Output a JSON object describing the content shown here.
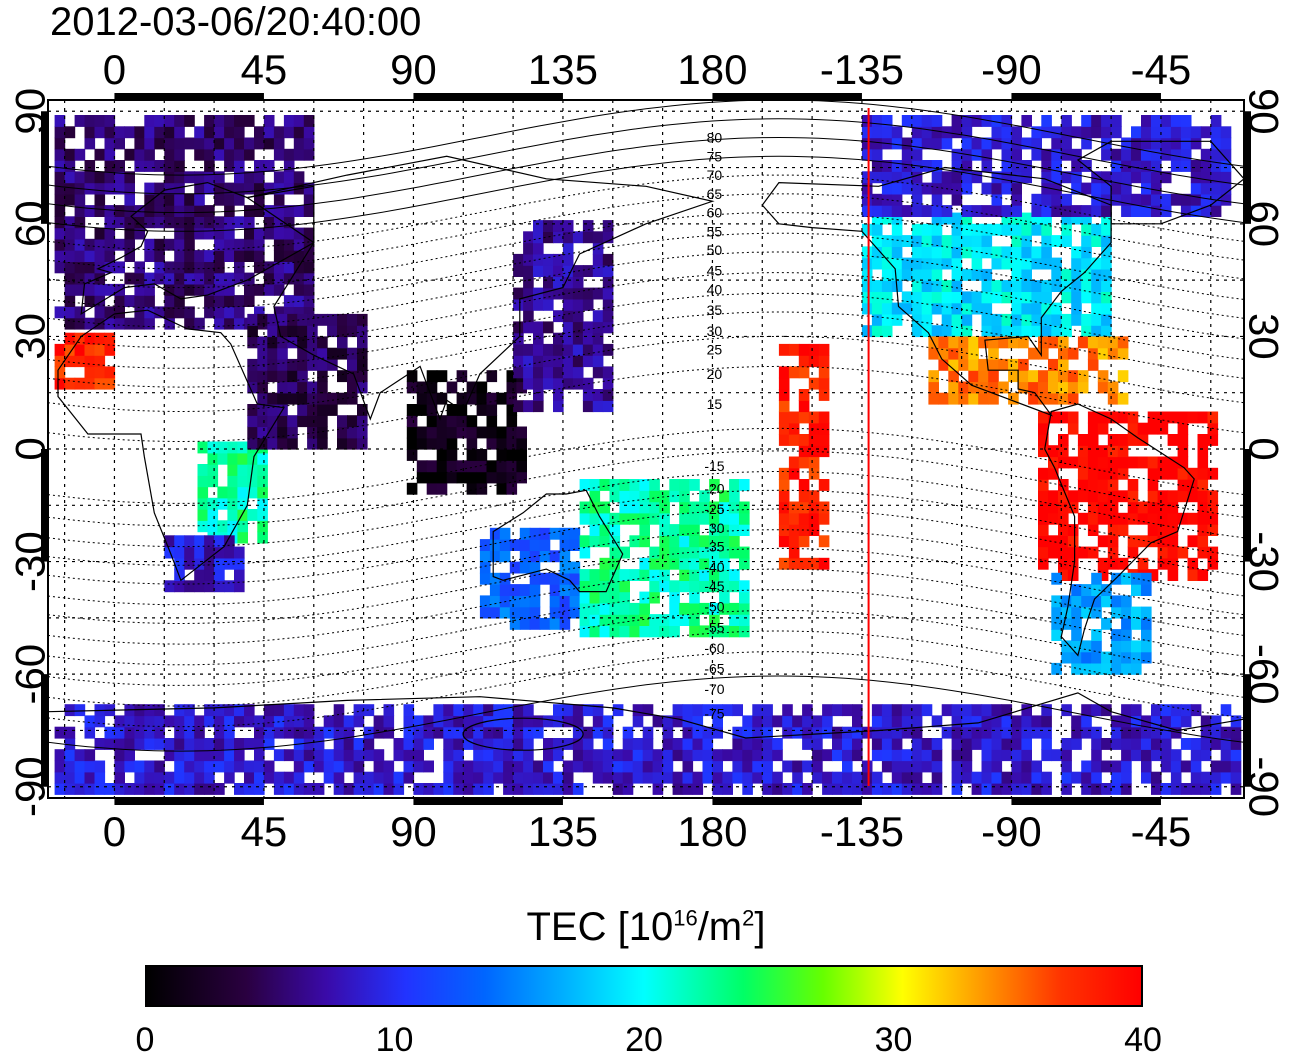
{
  "timestamp": "2012-03-06/20:40:00",
  "map": {
    "lon_ticks": [
      {
        "label": "0",
        "lon": 0
      },
      {
        "label": "45",
        "lon": 45
      },
      {
        "label": "90",
        "lon": 90
      },
      {
        "label": "135",
        "lon": 135
      },
      {
        "label": "180",
        "lon": 180
      },
      {
        "label": "-135",
        "lon": 225
      },
      {
        "label": "-90",
        "lon": 270
      },
      {
        "label": "-45",
        "lon": 315
      }
    ],
    "lat_ticks": [
      {
        "label": "90",
        "lat": 90
      },
      {
        "label": "60",
        "lat": 60
      },
      {
        "label": "30",
        "lat": 30
      },
      {
        "label": "0",
        "lat": 0
      },
      {
        "label": "-30",
        "lat": -30
      },
      {
        "label": "-60",
        "lat": -60
      },
      {
        "label": "-90",
        "lat": -90
      }
    ],
    "lon_range": [
      -20,
      340
    ],
    "lat_range": [
      -93,
      93
    ],
    "terminator_lon": 227,
    "terminator_color": "#ff0000",
    "magnetic_latitude_labels": [
      {
        "label": "80",
        "lat": 83
      },
      {
        "label": "75",
        "lat": 78
      },
      {
        "label": "70",
        "lat": 73
      },
      {
        "label": "65",
        "lat": 68
      },
      {
        "label": "60",
        "lat": 63
      },
      {
        "label": "55",
        "lat": 58
      },
      {
        "label": "50",
        "lat": 53
      },
      {
        "label": "45",
        "lat": 47.5
      },
      {
        "label": "40",
        "lat": 42.5
      },
      {
        "label": "35",
        "lat": 37
      },
      {
        "label": "30",
        "lat": 31.5
      },
      {
        "label": "25",
        "lat": 26.5
      },
      {
        "label": "20",
        "lat": 20
      },
      {
        "label": "15",
        "lat": 12
      },
      {
        "label": "-15",
        "lat": -4.5
      },
      {
        "label": "-20",
        "lat": -10.5
      },
      {
        "label": "-25",
        "lat": -16
      },
      {
        "label": "-30",
        "lat": -21
      },
      {
        "label": "-35",
        "lat": -26
      },
      {
        "label": "-40",
        "lat": -31.5
      },
      {
        "label": "-45",
        "lat": -36.5
      },
      {
        "label": "-50",
        "lat": -42
      },
      {
        "label": "-55",
        "lat": -47.5
      },
      {
        "label": "-60",
        "lat": -53
      },
      {
        "label": "-65",
        "lat": -58.5
      },
      {
        "label": "-70",
        "lat": -64
      },
      {
        "label": "-75",
        "lat": -70.5
      }
    ],
    "tec_regions": [
      {
        "name": "europe-russia",
        "tec": 5,
        "lon": [
          -18,
          60
        ],
        "lat": [
          32,
          88
        ]
      },
      {
        "name": "north-africa-west",
        "tec": 38,
        "lon": [
          -18,
          0
        ],
        "lat": [
          16,
          30
        ]
      },
      {
        "name": "africa-equator",
        "tec": 22,
        "lon": [
          25,
          45
        ],
        "lat": [
          -25,
          0
        ]
      },
      {
        "name": "africa-south",
        "tec": 8,
        "lon": [
          15,
          38
        ],
        "lat": [
          -38,
          -24
        ]
      },
      {
        "name": "middle-asia",
        "tec": 4,
        "lon": [
          40,
          75
        ],
        "lat": [
          0,
          35
        ]
      },
      {
        "name": "india-china-dark",
        "tec": 1,
        "lon": [
          88,
          122
        ],
        "lat": [
          -12,
          20
        ]
      },
      {
        "name": "east-asia",
        "tec": 6,
        "lon": [
          120,
          150
        ],
        "lat": [
          10,
          60
        ]
      },
      {
        "name": "australia-west",
        "tec": 13,
        "lon": [
          110,
          140
        ],
        "lat": [
          -48,
          -22
        ]
      },
      {
        "name": "australia-east",
        "tec": 22,
        "lon": [
          140,
          190
        ],
        "lat": [
          -50,
          -10
        ]
      },
      {
        "name": "north-america",
        "tec": 19,
        "lon": [
          225,
          300
        ],
        "lat": [
          30,
          62
        ]
      },
      {
        "name": "canada-arctic",
        "tec": 8,
        "lon": [
          225,
          335
        ],
        "lat": [
          62,
          88
        ]
      },
      {
        "name": "central-america",
        "tec": 34,
        "lon": [
          245,
          305
        ],
        "lat": [
          12,
          30
        ]
      },
      {
        "name": "south-america",
        "tec": 40,
        "lon": [
          278,
          330
        ],
        "lat": [
          -35,
          10
        ]
      },
      {
        "name": "south-america-tip",
        "tec": 16,
        "lon": [
          282,
          310
        ],
        "lat": [
          -60,
          -35
        ]
      },
      {
        "name": "pacific-islands",
        "tec": 38,
        "lon": [
          200,
          215
        ],
        "lat": [
          -32,
          28
        ]
      },
      {
        "name": "antarctica",
        "tec": 8,
        "lon": [
          -18,
          338
        ],
        "lat": [
          -92,
          -68
        ]
      }
    ]
  },
  "colorbar": {
    "title_main": "TEC  [10",
    "title_exp": "16",
    "title_mid": "/m",
    "title_exp2": "2",
    "title_end": "]",
    "ticks": [
      {
        "label": "0",
        "value": 0
      },
      {
        "label": "10",
        "value": 10
      },
      {
        "label": "20",
        "value": 20
      },
      {
        "label": "30",
        "value": 30
      },
      {
        "label": "40",
        "value": 40
      }
    ],
    "min": 0,
    "max": 40,
    "stops": [
      "#000000",
      "#2a0040",
      "#3a0aa8",
      "#2233ff",
      "#0066ff",
      "#00b0ff",
      "#00ffff",
      "#00ff66",
      "#66ff00",
      "#ffff00",
      "#ff9900",
      "#ff3300",
      "#ff0000"
    ]
  }
}
